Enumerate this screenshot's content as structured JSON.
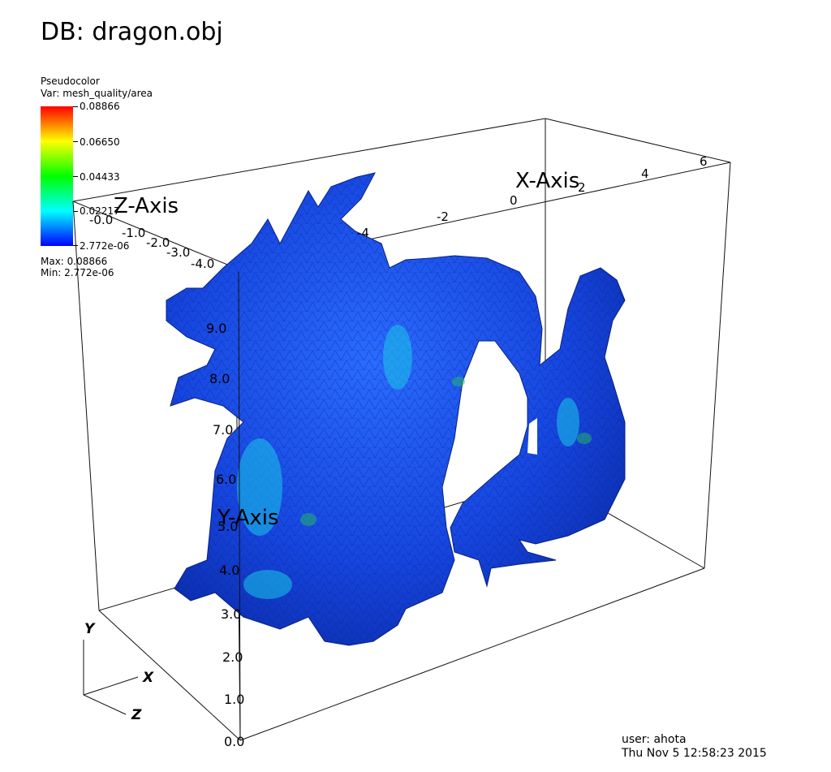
{
  "title": "DB: dragon.obj",
  "legend": {
    "plot_type": "Pseudocolor",
    "variable": "Var: mesh_quality/area",
    "ticks": [
      "0.08866",
      "0.06650",
      "0.04433",
      "0.02217",
      "2.772e-06"
    ],
    "max": "Max:  0.08866",
    "min": "Min:  2.772e-06",
    "colors": [
      "#ff0000",
      "#ffff00",
      "#00ff00",
      "#00ffff",
      "#0000ff"
    ]
  },
  "axes": {
    "x_title": "X-Axis",
    "y_title": "Y-Axis",
    "z_title": "Z-Axis",
    "x_ticks": [
      "-4",
      "-2",
      "0",
      "2",
      "4",
      "6"
    ],
    "y_ticks": [
      "0.0",
      "1.0",
      "2.0",
      "3.0",
      "4.0",
      "5.0",
      "6.0",
      "7.0",
      "8.0",
      "9.0"
    ],
    "z_ticks": [
      "-0.0",
      "-1.0",
      "-2.0",
      "-3.0",
      "-4.0"
    ]
  },
  "triad": {
    "x": "X",
    "y": "Y",
    "z": "Z"
  },
  "user": {
    "name": "user: ahota",
    "timestamp": "Thu Nov  5 12:58:23 2015"
  },
  "mesh_color": "#1a4de6"
}
